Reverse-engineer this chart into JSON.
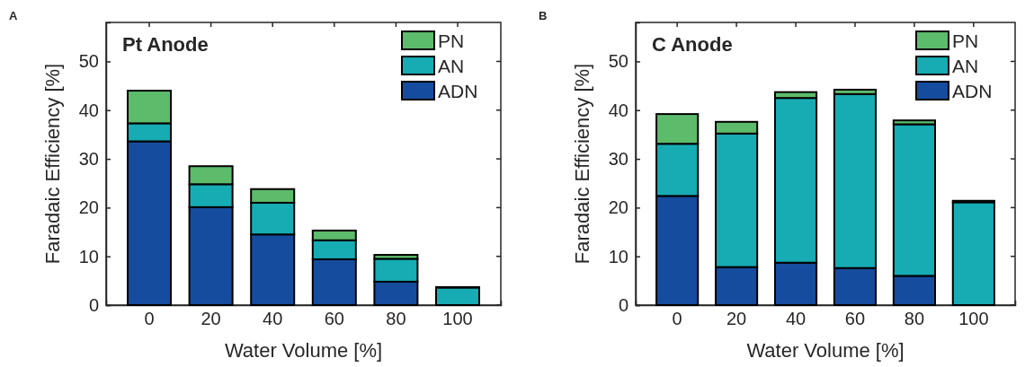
{
  "chart_data": [
    {
      "type": "bar",
      "stacked": true,
      "title": "Pt Anode",
      "xlabel": "Water Volume [%]",
      "ylabel": "Faradaic Efficiency [%]",
      "annotations": [
        "A"
      ],
      "categories": [
        "0",
        "20",
        "40",
        "60",
        "80",
        "100"
      ],
      "ylim": [
        0,
        58
      ],
      "yticks": [
        0,
        10,
        20,
        30,
        40,
        50
      ],
      "legend": "top right",
      "series": [
        {
          "name": "ADN",
          "color": "#164c9e",
          "values": [
            33.6,
            20.1,
            14.5,
            9.4,
            4.8,
            0
          ]
        },
        {
          "name": "AN",
          "color": "#17abb4",
          "values": [
            3.7,
            4.7,
            6.5,
            3.9,
            4.7,
            3.6
          ]
        },
        {
          "name": "PN",
          "color": "#5dbb6c",
          "values": [
            6.7,
            3.7,
            2.8,
            2.0,
            0.8,
            0.1
          ]
        }
      ]
    },
    {
      "type": "bar",
      "stacked": true,
      "title": "C Anode",
      "xlabel": "Water Volume [%]",
      "ylabel": "Faradaic Efficiency [%]",
      "annotations": [
        "B"
      ],
      "categories": [
        "0",
        "20",
        "40",
        "60",
        "80",
        "100"
      ],
      "ylim": [
        0,
        58
      ],
      "yticks": [
        0,
        10,
        20,
        30,
        40,
        50
      ],
      "legend": "top right",
      "series": [
        {
          "name": "ADN",
          "color": "#164c9e",
          "values": [
            22.4,
            7.8,
            8.7,
            7.6,
            6.0,
            0
          ]
        },
        {
          "name": "AN",
          "color": "#17abb4",
          "values": [
            10.7,
            27.4,
            33.8,
            35.7,
            31.1,
            21.1
          ]
        },
        {
          "name": "PN",
          "color": "#5dbb6c",
          "values": [
            6.1,
            2.4,
            1.2,
            0.9,
            0.8,
            0.3
          ]
        }
      ]
    }
  ]
}
